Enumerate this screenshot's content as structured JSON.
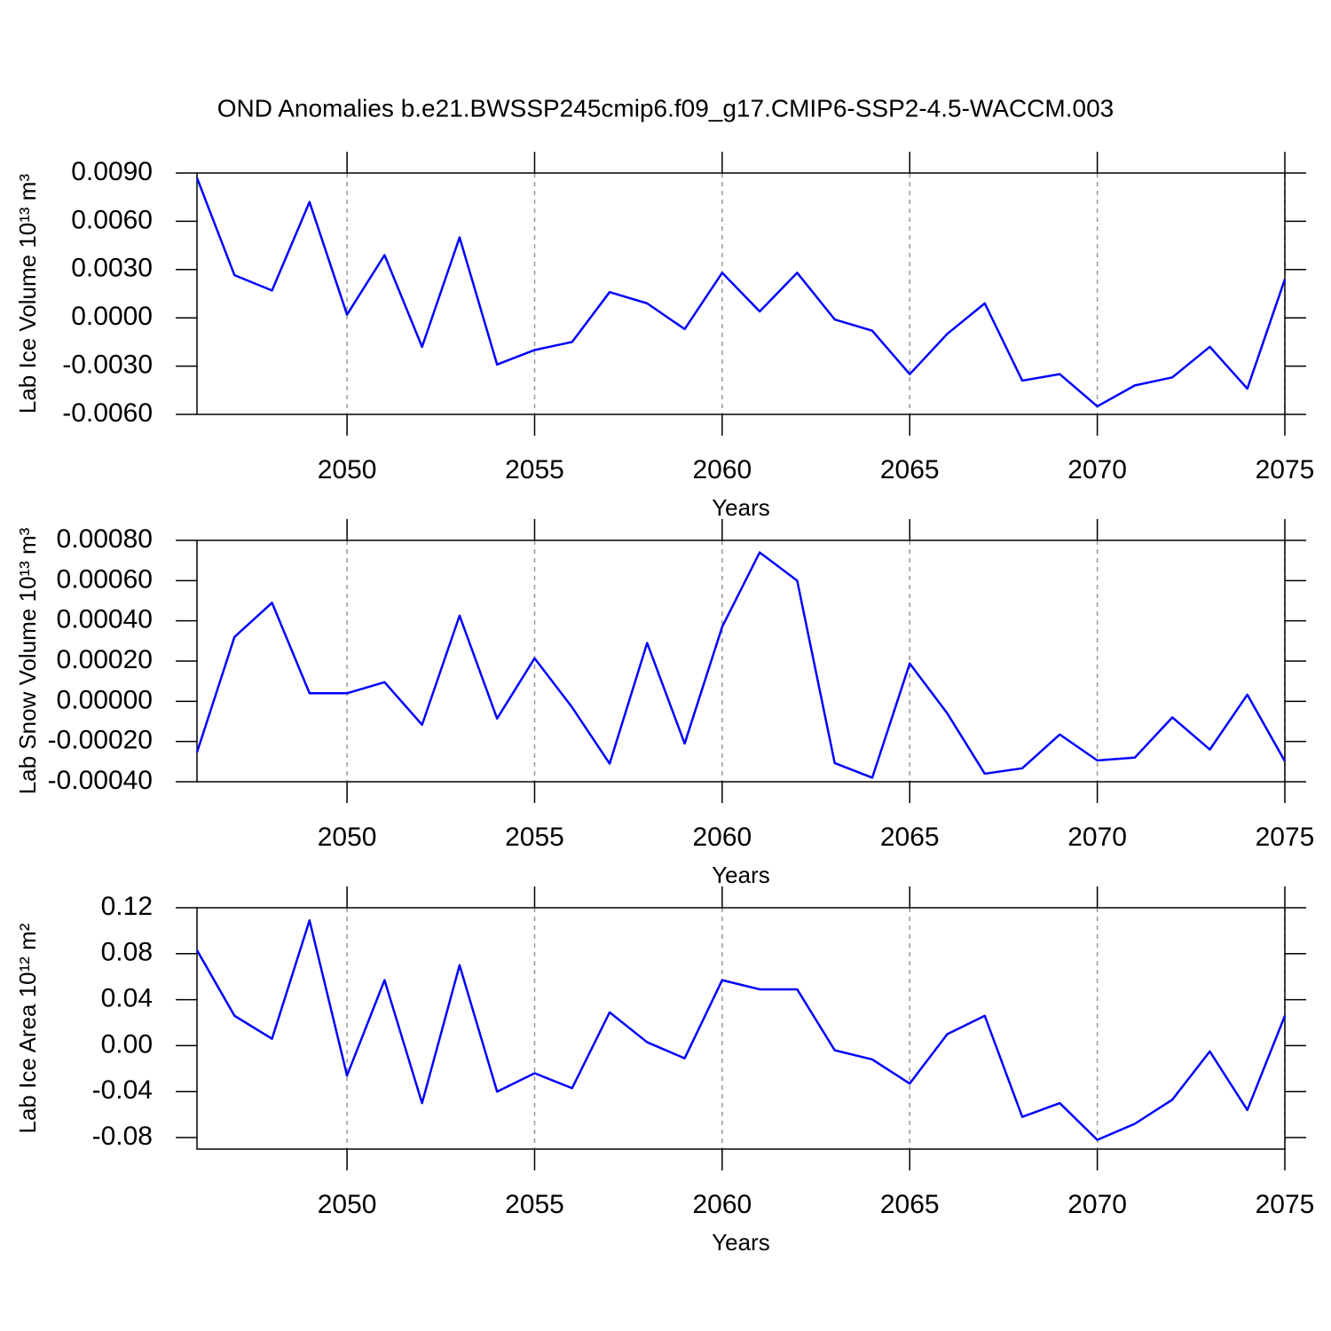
{
  "title": "OND Anomalies b.e21.BWSSP245cmip6.f09_g17.CMIP6-SSP2-4.5-WACCM.003",
  "chart_data": [
    {
      "type": "line",
      "ylabel": "Lab Ice Volume 10¹³ m³",
      "xlabel": "Years",
      "x": [
        2046,
        2047,
        2048,
        2049,
        2050,
        2051,
        2052,
        2053,
        2054,
        2055,
        2056,
        2057,
        2058,
        2059,
        2060,
        2061,
        2062,
        2063,
        2064,
        2065,
        2066,
        2067,
        2068,
        2069,
        2070,
        2071,
        2072,
        2073,
        2074,
        2075
      ],
      "values": [
        0.0087,
        0.00265,
        0.0017,
        0.0072,
        0.0002,
        0.0039,
        -0.0018,
        0.005,
        -0.0029,
        -0.002,
        -0.0015,
        0.0016,
        0.0009,
        -0.0007,
        0.0028,
        0.0004,
        0.0028,
        -0.0001,
        -0.0008,
        -0.0035,
        -0.001,
        0.0009,
        -0.0039,
        -0.0035,
        -0.0055,
        -0.0042,
        -0.0037,
        -0.0018,
        -0.0044,
        0.0024
      ],
      "color": "#0000ff",
      "xlim": [
        2046,
        2075
      ],
      "ylim": [
        -0.006,
        0.009
      ],
      "xticks": [
        2050,
        2055,
        2060,
        2065,
        2070,
        2075
      ],
      "yticks": [
        {
          "value": -0.006,
          "label": "-0.0060"
        },
        {
          "value": -0.003,
          "label": "-0.0030"
        },
        {
          "value": 0,
          "label": "0.0000"
        },
        {
          "value": 0.003,
          "label": "0.0030"
        },
        {
          "value": 0.006,
          "label": "0.0060"
        },
        {
          "value": 0.009,
          "label": "0.0090"
        }
      ],
      "grid": true
    },
    {
      "type": "line",
      "ylabel": "Lab Snow Volume 10¹³ m³",
      "xlabel": "Years",
      "x": [
        2046,
        2047,
        2048,
        2049,
        2050,
        2051,
        2052,
        2053,
        2054,
        2055,
        2056,
        2057,
        2058,
        2059,
        2060,
        2061,
        2062,
        2063,
        2064,
        2065,
        2066,
        2067,
        2068,
        2069,
        2070,
        2071,
        2072,
        2073,
        2074,
        2075
      ],
      "values": [
        -0.000254,
        0.00032,
        0.00049,
        4e-05,
        4e-05,
        9.5e-05,
        -0.000117,
        0.000426,
        -8.6e-05,
        0.000214,
        -3e-05,
        -0.00031,
        0.00029,
        -0.00021,
        0.00037,
        0.00074,
        0.0006,
        -0.000307,
        -0.00038,
        0.000188,
        -6e-05,
        -0.00036,
        -0.000333,
        -0.000165,
        -0.000294,
        -0.00028,
        -8e-05,
        -0.00024,
        3.3e-05,
        -0.000298
      ],
      "color": "#0000ff",
      "xlim": [
        2046,
        2075
      ],
      "ylim": [
        -0.0004,
        0.0008
      ],
      "xticks": [
        2050,
        2055,
        2060,
        2065,
        2070,
        2075
      ],
      "yticks": [
        {
          "value": -0.0004,
          "label": "-0.00040"
        },
        {
          "value": -0.0002,
          "label": "-0.00020"
        },
        {
          "value": 0,
          "label": "0.00000"
        },
        {
          "value": 0.0002,
          "label": "0.00020"
        },
        {
          "value": 0.0004,
          "label": "0.00040"
        },
        {
          "value": 0.0006,
          "label": "0.00060"
        },
        {
          "value": 0.0008,
          "label": "0.00080"
        }
      ],
      "grid": true
    },
    {
      "type": "line",
      "ylabel": "Lab Ice Area 10¹² m²",
      "xlabel": "Years",
      "x": [
        2046,
        2047,
        2048,
        2049,
        2050,
        2051,
        2052,
        2053,
        2054,
        2055,
        2056,
        2057,
        2058,
        2059,
        2060,
        2061,
        2062,
        2063,
        2064,
        2065,
        2066,
        2067,
        2068,
        2069,
        2070,
        2071,
        2072,
        2073,
        2074,
        2075
      ],
      "values": [
        0.083,
        0.026,
        0.006,
        0.109,
        -0.026,
        0.057,
        -0.05,
        0.07,
        -0.04,
        -0.024,
        -0.037,
        0.029,
        0.003,
        -0.011,
        0.057,
        0.049,
        0.049,
        -0.004,
        -0.012,
        -0.033,
        0.01,
        0.026,
        -0.062,
        -0.05,
        -0.082,
        -0.068,
        -0.047,
        -0.005,
        -0.056,
        0.026
      ],
      "color": "#0000ff",
      "xlim": [
        2046,
        2075
      ],
      "ylim": [
        -0.09,
        0.12
      ],
      "xticks": [
        2050,
        2055,
        2060,
        2065,
        2070,
        2075
      ],
      "yticks": [
        {
          "value": -0.08,
          "label": "-0.08"
        },
        {
          "value": -0.04,
          "label": "-0.04"
        },
        {
          "value": 0,
          "label": "0.00"
        },
        {
          "value": 0.04,
          "label": "0.04"
        },
        {
          "value": 0.08,
          "label": "0.08"
        },
        {
          "value": 0.12,
          "label": "0.12"
        }
      ],
      "grid": true
    }
  ]
}
